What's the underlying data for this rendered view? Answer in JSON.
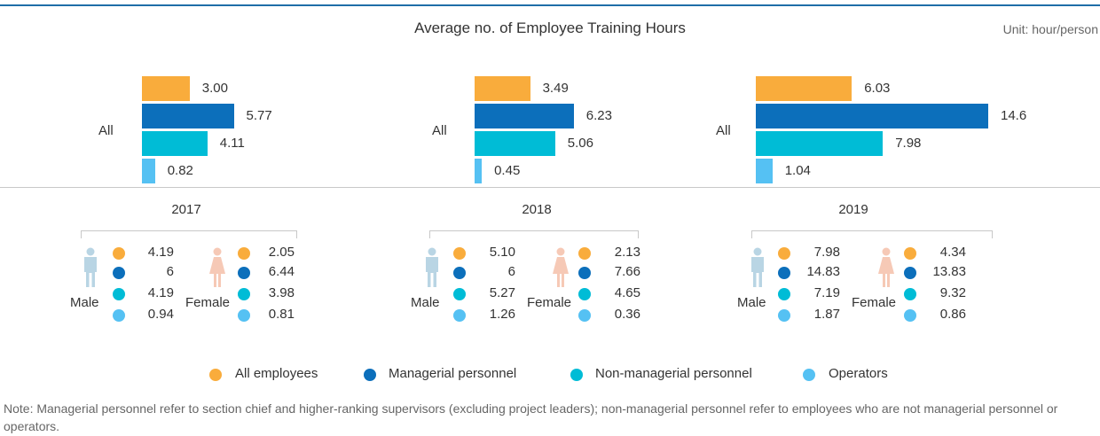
{
  "chart_data": {
    "type": "bar",
    "title": "Average no. of Employee Training Hours",
    "unit": "Unit: hour/person",
    "colors": {
      "all_employees": "#f9ac3c",
      "managerial": "#0c6fbb",
      "non_managerial": "#00bcd6",
      "operators": "#55c1f3"
    },
    "series_names": [
      "All employees",
      "Managerial personnel",
      "Non-managerial personnel",
      "Operators"
    ],
    "all_label": "All",
    "male_label": "Male",
    "female_label": "Female",
    "years": [
      {
        "year": "2017",
        "all": [
          "3.00",
          "5.77",
          "4.11",
          "0.82"
        ],
        "male": [
          "4.19",
          "6",
          "4.19",
          "0.94"
        ],
        "female": [
          "2.05",
          "6.44",
          "3.98",
          "0.81"
        ]
      },
      {
        "year": "2018",
        "all": [
          "3.49",
          "6.23",
          "5.06",
          "0.45"
        ],
        "male": [
          "5.10",
          "6",
          "5.27",
          "1.26"
        ],
        "female": [
          "2.13",
          "7.66",
          "4.65",
          "0.36"
        ]
      },
      {
        "year": "2019",
        "all": [
          "6.03",
          "14.6",
          "7.98",
          "1.04"
        ],
        "male": [
          "7.98",
          "14.83",
          "7.19",
          "1.87"
        ],
        "female": [
          "4.34",
          "13.83",
          "9.32",
          "0.86"
        ]
      }
    ],
    "note": "Note: Managerial personnel refer to section chief and higher-ranking supervisors (excluding project leaders); non-managerial personnel refer to employees who are not managerial personnel or operators."
  },
  "icons": {
    "male": "male-person-icon",
    "female": "female-person-icon",
    "male_color": "#b9d5e4",
    "female_color": "#f6c9b6"
  }
}
